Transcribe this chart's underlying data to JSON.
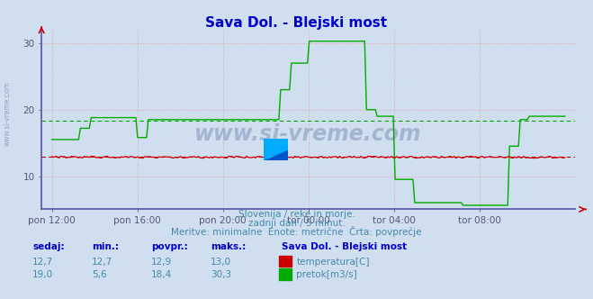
{
  "title": "Sava Dol. - Blejski most",
  "title_color": "#0000cc",
  "bg_color": "#d0dff0",
  "plot_bg_color": "#d0dff0",
  "grid_color": "#ee9999",
  "x_tick_labels": [
    "pon 12:00",
    "pon 16:00",
    "pon 20:00",
    "tor 00:00",
    "tor 04:00",
    "tor 08:00"
  ],
  "temp_color": "#cc0000",
  "temp_avg": 12.9,
  "flow_color": "#00aa00",
  "flow_avg": 18.4,
  "ylim": [
    5,
    32
  ],
  "yticks": [
    10,
    20,
    30
  ],
  "subtitle1": "Slovenija / reke in morje.",
  "subtitle2": "zadnji dan / 5 minut.",
  "subtitle3": "Meritve: minimalne  Enote: metrične  Črta: povprečje",
  "subtitle_color": "#4488aa",
  "table_header": [
    "sedaj:",
    "min.:",
    "povpr.:",
    "maks.:",
    "Sava Dol. - Blejski most"
  ],
  "table_color": "#0000cc",
  "temp_row": [
    "12,7",
    "12,7",
    "12,9",
    "13,0"
  ],
  "flow_row": [
    "19,0",
    "5,6",
    "18,4",
    "30,3"
  ],
  "watermark": "www.si-vreme.com",
  "watermark_color": "#8899bb",
  "side_text": "www.si-vreme.com",
  "side_color": "#8899bb",
  "flow_data": [
    15.5,
    15.5,
    15.5,
    15.5,
    15.5,
    15.5,
    17.2,
    17.2,
    18.8,
    18.8,
    18.8,
    18.8,
    18.8,
    18.8,
    18.8,
    18.8,
    18.8,
    18.8,
    15.8,
    15.8,
    18.5,
    18.5,
    18.5,
    18.5,
    18.5,
    18.5,
    18.5,
    18.5,
    18.5,
    18.5,
    18.5,
    18.5,
    18.5,
    18.5,
    18.5,
    18.5,
    18.5,
    18.5,
    18.5,
    18.5,
    18.5,
    18.5,
    18.5,
    18.5,
    18.5,
    18.5,
    18.5,
    18.5,
    23.0,
    23.0,
    27.0,
    27.0,
    27.0,
    27.0,
    30.3,
    30.3,
    30.3,
    30.3,
    30.3,
    30.3,
    30.3,
    30.3,
    30.3,
    30.3,
    30.3,
    30.3,
    20.0,
    20.0,
    19.0,
    19.0,
    19.0,
    19.0,
    9.5,
    9.5,
    9.5,
    9.5,
    6.0,
    6.0,
    6.0,
    6.0,
    6.0,
    6.0,
    6.0,
    6.0,
    6.0,
    6.0,
    5.6,
    5.6,
    5.6,
    5.6,
    5.6,
    5.6,
    5.6,
    5.6,
    5.6,
    5.6,
    14.5,
    14.5,
    18.5,
    18.5,
    19.0,
    19.0,
    19.0,
    19.0,
    19.0,
    19.0,
    19.0,
    19.0
  ],
  "n_ticks": 6,
  "tick_positions_frac": [
    0.0,
    0.1667,
    0.3333,
    0.5,
    0.6667,
    0.8333
  ]
}
